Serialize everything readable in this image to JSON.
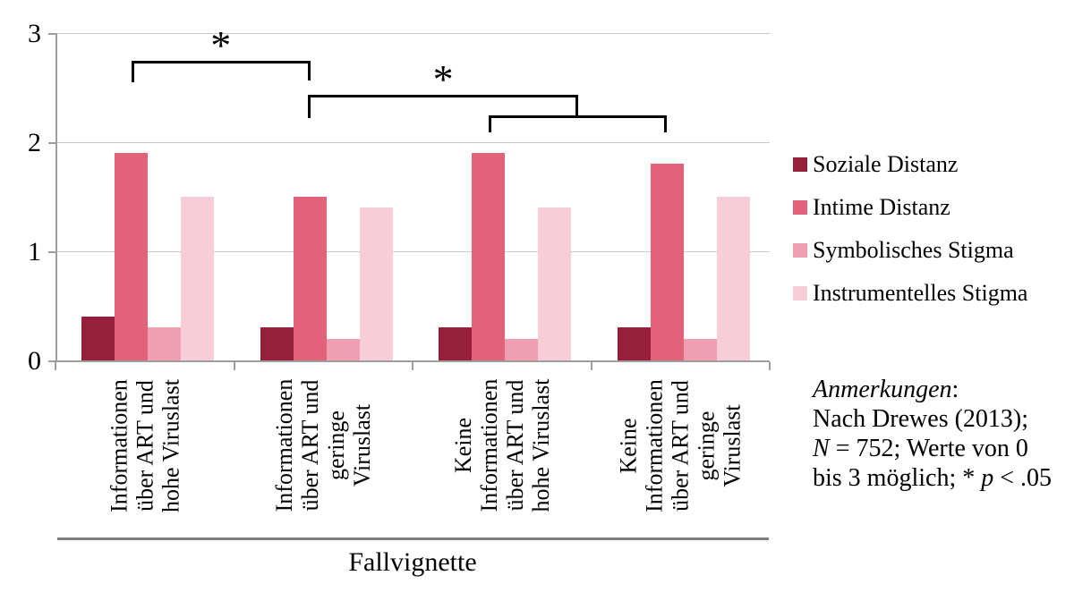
{
  "chart_data": {
    "type": "bar",
    "title": "",
    "xlabel": "Fallvignette",
    "ylabel": "",
    "ylim": [
      0,
      3
    ],
    "yticks": [
      "0",
      "1",
      "2",
      "3"
    ],
    "grid": true,
    "legend_position": "right",
    "categories": [
      "Informationen über ART und hohe Viruslast",
      "Informationen über ART und geringe Viruslast",
      "Keine Informationen über ART und hohe Viruslast",
      "Keine Informationen über ART und geringe Viruslast"
    ],
    "category_label_lines": [
      [
        "Informationen",
        "über ART und",
        "hohe Viruslast"
      ],
      [
        "Informationen",
        "über ART und",
        "geringe",
        "Viruslast"
      ],
      [
        "Keine",
        "Informationen",
        "über ART und",
        "hohe Viruslast"
      ],
      [
        "Keine",
        "Informationen",
        "über ART und",
        "geringe",
        "Viruslast"
      ]
    ],
    "series": [
      {
        "name": "Soziale Distanz",
        "color": "#96203C",
        "values": [
          0.4,
          0.3,
          0.3,
          0.3
        ]
      },
      {
        "name": "Intime Distanz",
        "color": "#E2627A",
        "values": [
          1.9,
          1.5,
          1.9,
          1.8
        ]
      },
      {
        "name": "Symbolisches Stigma",
        "color": "#EF9FB0",
        "values": [
          0.3,
          0.2,
          0.2,
          0.2
        ]
      },
      {
        "name": "Instrumentelles Stigma",
        "color": "#F7CDD8",
        "values": [
          1.5,
          1.4,
          1.4,
          1.5
        ]
      }
    ],
    "significance_brackets": [
      {
        "label": "*",
        "between": [
          "group1-intime-distanz",
          "group2-intime-distanz"
        ]
      },
      {
        "label": "*",
        "between": [
          "group2-intime-distanz",
          "groups3and4-intime-distanz"
        ]
      },
      {
        "label": null,
        "between": [
          "group3-intime-distanz",
          "group4-intime-distanz"
        ]
      }
    ]
  },
  "annotation": {
    "lines": [
      [
        {
          "text": "Anmerkungen",
          "italic": true
        },
        {
          "text": ":",
          "italic": false
        }
      ],
      [
        {
          "text": "Nach Drewes (2013);",
          "italic": false
        }
      ],
      [
        {
          "text": "N",
          "italic": true
        },
        {
          "text": " = 752; Werte von 0",
          "italic": false
        }
      ],
      [
        {
          "text": "bis 3 möglich; * ",
          "italic": false
        },
        {
          "text": "p",
          "italic": true
        },
        {
          "text": " < .05",
          "italic": false
        }
      ]
    ]
  },
  "colors": {
    "gridline": "#C9C9C9",
    "axis": "#9E9E9E",
    "separator": "#7F7F7F",
    "bracket": "#000000",
    "text": "#000000",
    "background": "#FFFFFF"
  }
}
